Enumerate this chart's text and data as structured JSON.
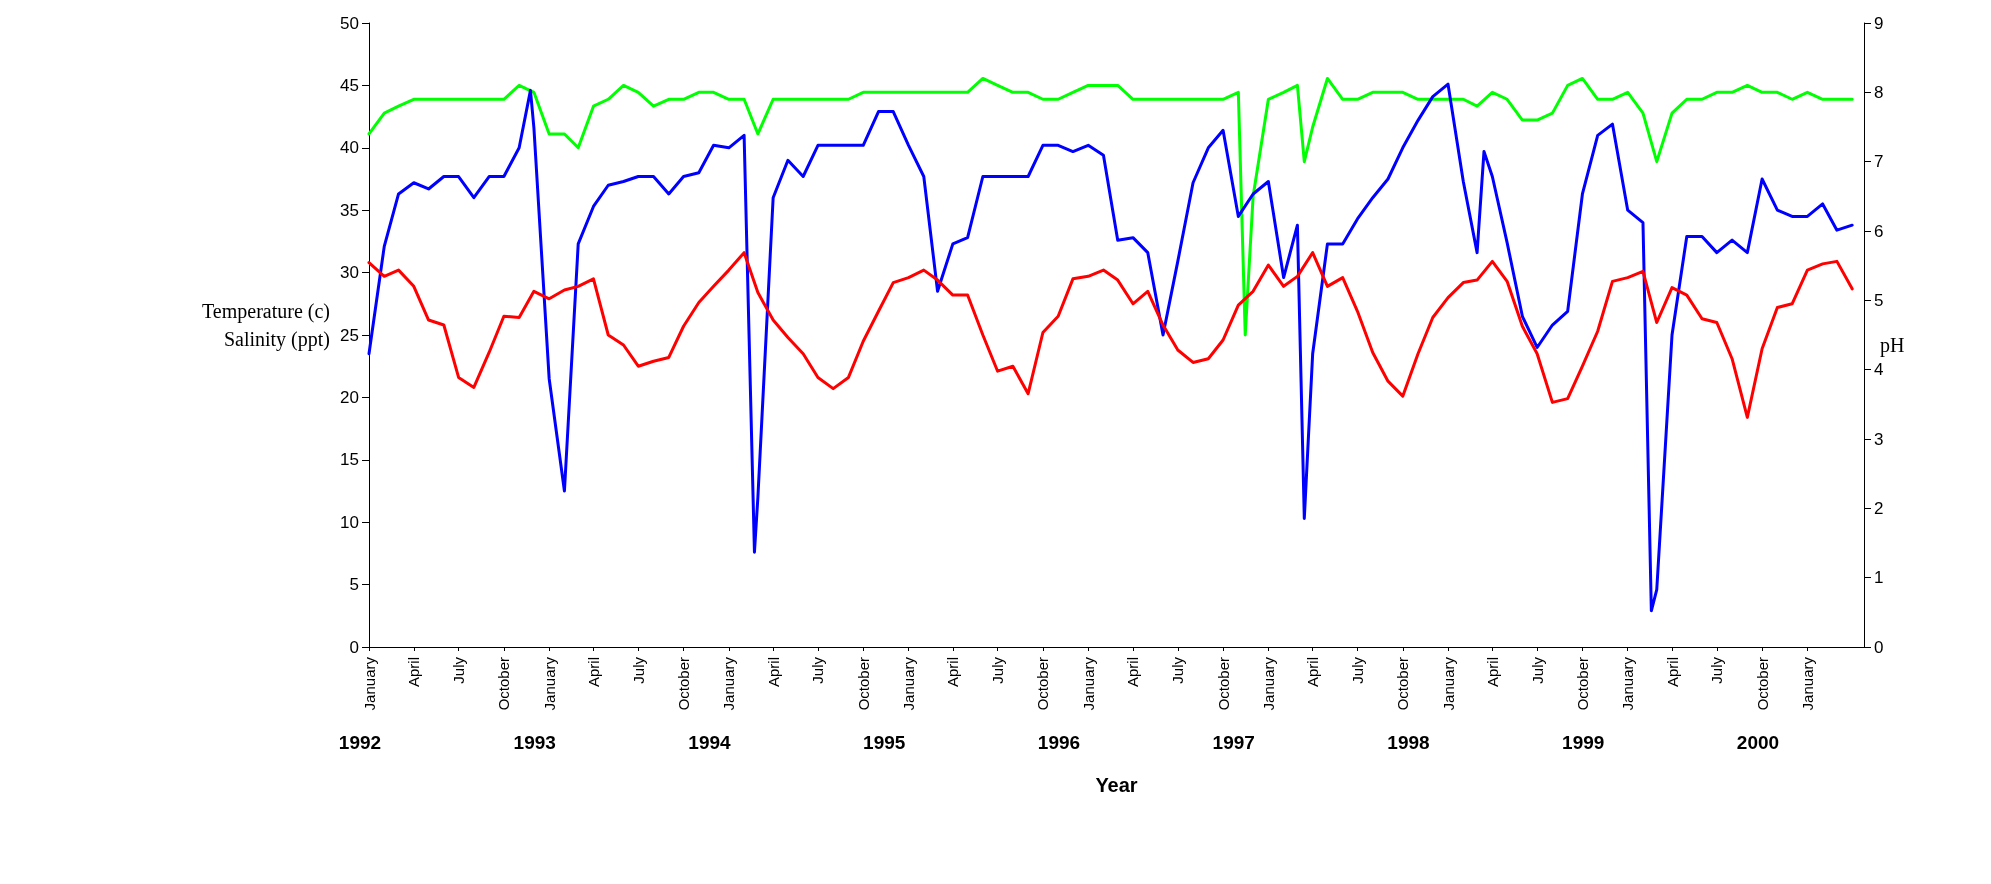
{
  "chart_data": {
    "type": "line",
    "xlabel": "Year",
    "ylabel": "Temperature (c)\nSalinity (ppt)",
    "y2label": "pH",
    "annotations": [
      "1992",
      "1993",
      "1994",
      "1995",
      "1996",
      "1997",
      "1998",
      "1999",
      "2000"
    ],
    "xlim": [
      "1992-01",
      "2000-04-25"
    ],
    "xticks": [
      {
        "value": "1992-01",
        "label": "January"
      },
      {
        "value": "1992-04",
        "label": "April"
      },
      {
        "value": "1992-07",
        "label": "July"
      },
      {
        "value": "1992-10",
        "label": "October"
      },
      {
        "value": "1993-01",
        "label": "January"
      },
      {
        "value": "1993-04",
        "label": "April"
      },
      {
        "value": "1993-07",
        "label": "July"
      },
      {
        "value": "1993-10",
        "label": "October"
      },
      {
        "value": "1994-01",
        "label": "January"
      },
      {
        "value": "1994-04",
        "label": "April"
      },
      {
        "value": "1994-07",
        "label": "July"
      },
      {
        "value": "1994-10",
        "label": "October"
      },
      {
        "value": "1995-01",
        "label": "January"
      },
      {
        "value": "1995-04",
        "label": "April"
      },
      {
        "value": "1995-07",
        "label": "July"
      },
      {
        "value": "1995-10",
        "label": "October"
      },
      {
        "value": "1996-01",
        "label": "January"
      },
      {
        "value": "1996-04",
        "label": "April"
      },
      {
        "value": "1996-07",
        "label": "July"
      },
      {
        "value": "1996-10",
        "label": "October"
      },
      {
        "value": "1997-01",
        "label": "January"
      },
      {
        "value": "1997-04",
        "label": "April"
      },
      {
        "value": "1997-07",
        "label": "July"
      },
      {
        "value": "1997-10",
        "label": "October"
      },
      {
        "value": "1998-01",
        "label": "January"
      },
      {
        "value": "1998-04",
        "label": "April"
      },
      {
        "value": "1998-07",
        "label": "July"
      },
      {
        "value": "1998-10",
        "label": "October"
      },
      {
        "value": "1999-01",
        "label": "January"
      },
      {
        "value": "1999-04",
        "label": "April"
      },
      {
        "value": "1999-07",
        "label": "July"
      },
      {
        "value": "1999-10",
        "label": "October"
      },
      {
        "value": "2000-01",
        "label": "January"
      }
    ],
    "ylim": [
      0,
      50
    ],
    "yticks": [
      0,
      5,
      10,
      15,
      20,
      25,
      30,
      35,
      40,
      45,
      50
    ],
    "y2lim": [
      0,
      9
    ],
    "y2ticks": [
      0,
      1,
      2,
      3,
      4,
      5,
      6,
      7,
      8,
      9
    ],
    "grid": false,
    "x": [
      "1992-01",
      "1992-02",
      "1992-03",
      "1992-04",
      "1992-05",
      "1992-06",
      "1992-07",
      "1992-08",
      "1992-09",
      "1992-10",
      "1992-11",
      "1992-12",
      "1993-01",
      "1993-02",
      "1993-03",
      "1993-04",
      "1993-05",
      "1993-06",
      "1993-07",
      "1993-08",
      "1993-09",
      "1993-10",
      "1993-11",
      "1993-12",
      "1994-01",
      "1994-02",
      "1994-03",
      "1994-04",
      "1994-05",
      "1994-06",
      "1994-07",
      "1994-08",
      "1994-09",
      "1994-10",
      "1994-11",
      "1994-12",
      "1995-01",
      "1995-02",
      "1995-03",
      "1995-04",
      "1995-05",
      "1995-06",
      "1995-07",
      "1995-08",
      "1995-09",
      "1995-10",
      "1995-11",
      "1995-12",
      "1996-01",
      "1996-02",
      "1996-03",
      "1996-04",
      "1996-05",
      "1996-06",
      "1996-07",
      "1996-08",
      "1996-09",
      "1996-10",
      "1996-11",
      "1996-12",
      "1997-01",
      "1997-02",
      "1997-03",
      "1997-04",
      "1997-05",
      "1997-06",
      "1997-07",
      "1997-08",
      "1997-09",
      "1997-10",
      "1997-11",
      "1997-12",
      "1998-01",
      "1998-02",
      "1998-03",
      "1998-04",
      "1998-05",
      "1998-06",
      "1998-07",
      "1998-08",
      "1998-09",
      "1998-10",
      "1998-11",
      "1998-12",
      "1999-01",
      "1999-02",
      "1999-03",
      "1999-04",
      "1999-05",
      "1999-06",
      "1999-07",
      "1999-08",
      "1999-09",
      "1999-10",
      "1999-11",
      "1999-12",
      "2000-01",
      "2000-02",
      "2000-03",
      "2000-04"
    ],
    "series": [
      {
        "color": "#00ff00",
        "axis": "y2",
        "x": [
          "1992-01",
          "1992-02",
          "1992-03",
          "1992-04",
          "1992-05",
          "1992-06",
          "1992-07",
          "1992-08",
          "1992-09",
          "1992-10",
          "1992-11",
          "1992-12",
          "1993-01",
          "1993-02",
          "1993-03",
          "1993-04",
          "1993-05",
          "1993-06",
          "1993-07",
          "1993-08",
          "1993-09",
          "1993-10",
          "1993-11",
          "1993-12",
          "1994-01",
          "1994-02",
          "1994-03",
          "1994-04",
          "1994-05",
          "1994-06",
          "1994-07",
          "1994-08",
          "1994-09",
          "1994-10",
          "1994-11",
          "1994-12",
          "1995-01",
          "1995-02",
          "1995-03",
          "1995-04",
          "1995-05",
          "1995-06",
          "1995-07",
          "1995-08",
          "1995-09",
          "1995-10",
          "1995-11",
          "1995-12",
          "1996-01",
          "1996-02",
          "1996-03",
          "1996-04",
          "1996-05",
          "1996-06",
          "1996-07",
          "1996-08",
          "1996-09",
          "1996-10",
          "1996-11",
          "1996-11-15",
          "1996-12",
          "1997-01",
          "1997-02",
          "1997-03",
          "1997-03-15",
          "1997-04",
          "1997-05",
          "1997-06",
          "1997-07",
          "1997-08",
          "1997-09",
          "1997-10",
          "1997-11",
          "1997-12",
          "1998-01",
          "1998-02",
          "1998-03",
          "1998-04",
          "1998-05",
          "1998-06",
          "1998-07",
          "1998-08",
          "1998-09",
          "1998-10",
          "1998-11",
          "1998-12",
          "1999-01",
          "1999-02",
          "1999-03",
          "1999-04",
          "1999-05",
          "1999-06",
          "1999-07",
          "1999-08",
          "1999-09",
          "1999-10",
          "1999-11",
          "1999-12",
          "2000-01",
          "2000-02",
          "2000-03",
          "2000-04"
        ],
        "values": [
          7.4,
          7.7,
          7.8,
          7.9,
          7.9,
          7.9,
          7.9,
          7.9,
          7.9,
          7.9,
          8.1,
          8.0,
          7.4,
          7.4,
          7.2,
          7.8,
          7.9,
          8.1,
          8.0,
          7.8,
          7.9,
          7.9,
          8.0,
          8.0,
          7.9,
          7.9,
          7.4,
          7.9,
          7.9,
          7.9,
          7.9,
          7.9,
          7.9,
          8.0,
          8.0,
          8.0,
          8.0,
          8.0,
          8.0,
          8.0,
          8.0,
          8.2,
          8.1,
          8.0,
          8.0,
          7.9,
          7.9,
          8.0,
          8.1,
          8.1,
          8.1,
          7.9,
          7.9,
          7.9,
          7.9,
          7.9,
          7.9,
          7.9,
          8.0,
          4.5,
          6.5,
          7.9,
          8.0,
          8.1,
          7.0,
          7.5,
          8.2,
          7.9,
          7.9,
          8.0,
          8.0,
          8.0,
          7.9,
          7.9,
          7.9,
          7.9,
          7.8,
          8.0,
          7.9,
          7.6,
          7.6,
          7.7,
          8.1,
          8.2,
          7.9,
          7.9,
          8.0,
          7.7,
          7.0,
          7.7,
          7.9,
          7.9,
          8.0,
          8.0,
          8.1,
          8.0,
          8.0,
          7.9,
          8.0,
          7.9,
          7.9,
          7.9
        ]
      },
      {
        "color": "#0000ff",
        "x": [
          "1992-01",
          "1992-02",
          "1992-03",
          "1992-04",
          "1992-05",
          "1992-06",
          "1992-07",
          "1992-08",
          "1992-09",
          "1992-10",
          "1992-11",
          "1992-11-24",
          "1992-12",
          "1993-01",
          "1993-02",
          "1993-03",
          "1993-04",
          "1993-05",
          "1993-06",
          "1993-07",
          "1993-08",
          "1993-09",
          "1993-10",
          "1993-11",
          "1993-12",
          "1994-01",
          "1994-02",
          "1994-02-22",
          "1994-03",
          "1994-04",
          "1994-05",
          "1994-06",
          "1994-07",
          "1994-08",
          "1994-09",
          "1994-10",
          "1994-11",
          "1994-12",
          "1995-01",
          "1995-02",
          "1995-03",
          "1995-04",
          "1995-05",
          "1995-06",
          "1995-07",
          "1995-08",
          "1995-09",
          "1995-10",
          "1995-11",
          "1995-12",
          "1996-01",
          "1996-02",
          "1996-03",
          "1996-04",
          "1996-05",
          "1996-06",
          "1996-07",
          "1996-08",
          "1996-09",
          "1996-10",
          "1996-11",
          "1996-12",
          "1997-01",
          "1997-02",
          "1997-03",
          "1997-03-15",
          "1997-04",
          "1997-05",
          "1997-06",
          "1997-07",
          "1997-08",
          "1997-09",
          "1997-10",
          "1997-11",
          "1997-12",
          "1998-01",
          "1998-02",
          "1998-03",
          "1998-03-15",
          "1998-04",
          "1998-05",
          "1998-06",
          "1998-07",
          "1998-08",
          "1998-09",
          "1998-10",
          "1998-11",
          "1998-12",
          "1999-01",
          "1999-02",
          "1999-02-18",
          "1999-03",
          "1999-04",
          "1999-05",
          "1999-06",
          "1999-07",
          "1999-08",
          "1999-09",
          "1999-10",
          "1999-11",
          "1999-12",
          "2000-01",
          "2000-02",
          "2000-03",
          "2000-04"
        ],
        "values": [
          23.5,
          32.1,
          36.3,
          37.2,
          36.7,
          37.7,
          37.7,
          36.0,
          37.7,
          37.7,
          40.0,
          44.6,
          41.6,
          21.5,
          12.5,
          32.3,
          35.3,
          37.0,
          37.3,
          37.7,
          37.7,
          36.3,
          37.7,
          38.0,
          40.2,
          40.0,
          41.0,
          7.6,
          12.0,
          36.0,
          39.0,
          37.7,
          40.2,
          40.2,
          40.2,
          40.2,
          42.9,
          42.9,
          40.2,
          37.7,
          28.5,
          32.3,
          32.8,
          37.7,
          37.7,
          37.7,
          37.7,
          40.2,
          40.2,
          39.7,
          40.2,
          39.4,
          32.6,
          32.8,
          31.6,
          25.0,
          30.9,
          37.2,
          40.0,
          41.4,
          34.5,
          36.3,
          37.3,
          29.6,
          33.8,
          10.3,
          23.5,
          32.3,
          32.3,
          34.3,
          36.0,
          37.5,
          40.0,
          42.2,
          44.1,
          45.1,
          37.3,
          31.6,
          39.7,
          37.7,
          32.4,
          26.5,
          24.0,
          25.8,
          26.9,
          36.3,
          41.0,
          41.9,
          35.0,
          34.0,
          2.9,
          4.6,
          25.0,
          32.9,
          32.9,
          31.6,
          32.6,
          31.6,
          37.5,
          35.0,
          34.5,
          34.5,
          35.5,
          33.4,
          33.8
        ]
      },
      {
        "color": "#ff0000",
        "values": [
          30.8,
          29.7,
          30.2,
          28.9,
          26.2,
          25.8,
          21.6,
          20.8,
          23.6,
          26.5,
          26.4,
          28.5,
          27.9,
          28.6,
          28.9,
          29.5,
          25.0,
          24.2,
          22.5,
          22.9,
          23.2,
          25.7,
          27.6,
          28.9,
          30.2,
          31.6,
          28.4,
          26.2,
          24.8,
          23.5,
          21.6,
          20.7,
          21.6,
          24.5,
          26.9,
          29.2,
          29.6,
          30.2,
          29.4,
          28.2,
          28.2,
          25.0,
          22.1,
          22.5,
          20.3,
          25.2,
          26.5,
          29.5,
          29.7,
          30.2,
          29.4,
          27.5,
          28.5,
          25.8,
          23.8,
          22.8,
          23.1,
          24.6,
          27.4,
          28.5,
          30.6,
          28.9,
          29.7,
          31.6,
          28.9,
          29.6,
          26.9,
          23.6,
          21.3,
          20.1,
          23.5,
          26.4,
          28.0,
          29.2,
          29.4,
          30.9,
          29.3,
          25.7,
          23.5,
          19.6,
          19.9,
          22.5,
          25.3,
          29.3,
          29.6,
          30.1,
          26.0,
          28.8,
          28.2,
          26.3,
          26.0,
          23.1,
          18.4,
          23.9,
          27.2,
          27.5,
          30.2,
          30.7,
          30.9,
          28.7
        ]
      }
    ]
  }
}
